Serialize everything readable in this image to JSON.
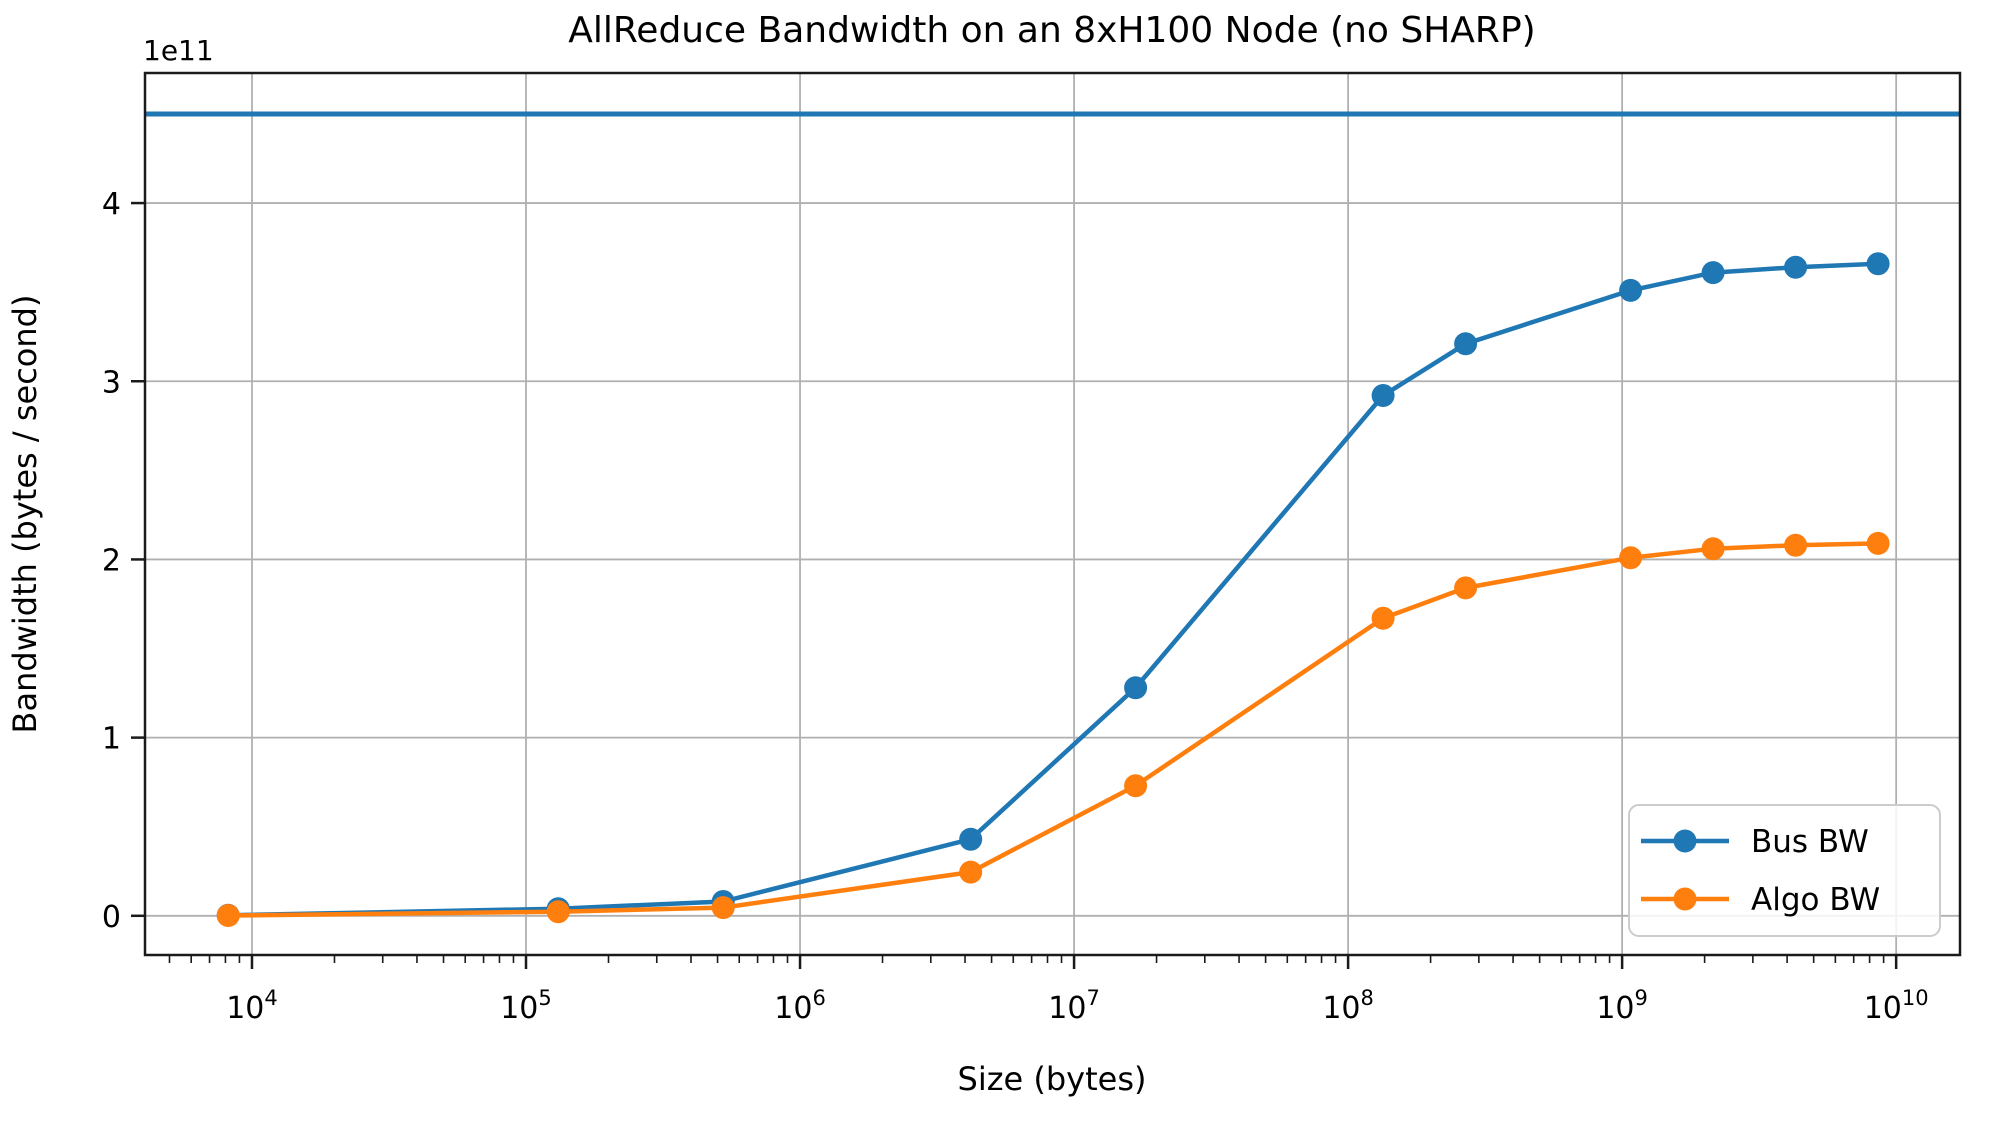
{
  "chart_data": {
    "type": "line",
    "title": "AllReduce Bandwidth on an 8xH100 Node (no SHARP)",
    "xlabel": "Size (bytes)",
    "ylabel": "Bandwidth (bytes / second)",
    "y_offset_label": "1e11",
    "x_scale": "log",
    "y_scale": "linear",
    "xlim": [
      4070,
      17100000000
    ],
    "ylim": [
      -22000000000,
      473000000000
    ],
    "x_tick_exponents": [
      4,
      5,
      6,
      7,
      8,
      9,
      10
    ],
    "y_tick_values": [
      0,
      1,
      2,
      3,
      4
    ],
    "y_tick_unit": 100000000000,
    "grid": true,
    "legend_position": "lower right",
    "background_color": "#ffffff",
    "grid_color": "#b0b0b0",
    "spine_color": "#1a1a1a",
    "hline": {
      "value": 450000000000,
      "color": "#1f77b4"
    },
    "x": [
      8192,
      131072,
      524288,
      4194304,
      16777216,
      134217728,
      268435456,
      1073741824,
      2147483648,
      4294967296,
      8589934592
    ],
    "series": [
      {
        "name": "Bus BW",
        "color": "#1f77b4",
        "values": [
          300000000,
          4000000000,
          8000000000,
          43000000000,
          128000000000,
          292000000000,
          321000000000,
          351000000000,
          361000000000,
          364000000000,
          366000000000
        ]
      },
      {
        "name": "Algo BW",
        "color": "#ff7f0e",
        "values": [
          170000000,
          2300000000,
          4600000000,
          24500000000,
          73000000000,
          167000000000,
          184000000000,
          201000000000,
          206000000000,
          208000000000,
          209000000000
        ]
      }
    ]
  }
}
